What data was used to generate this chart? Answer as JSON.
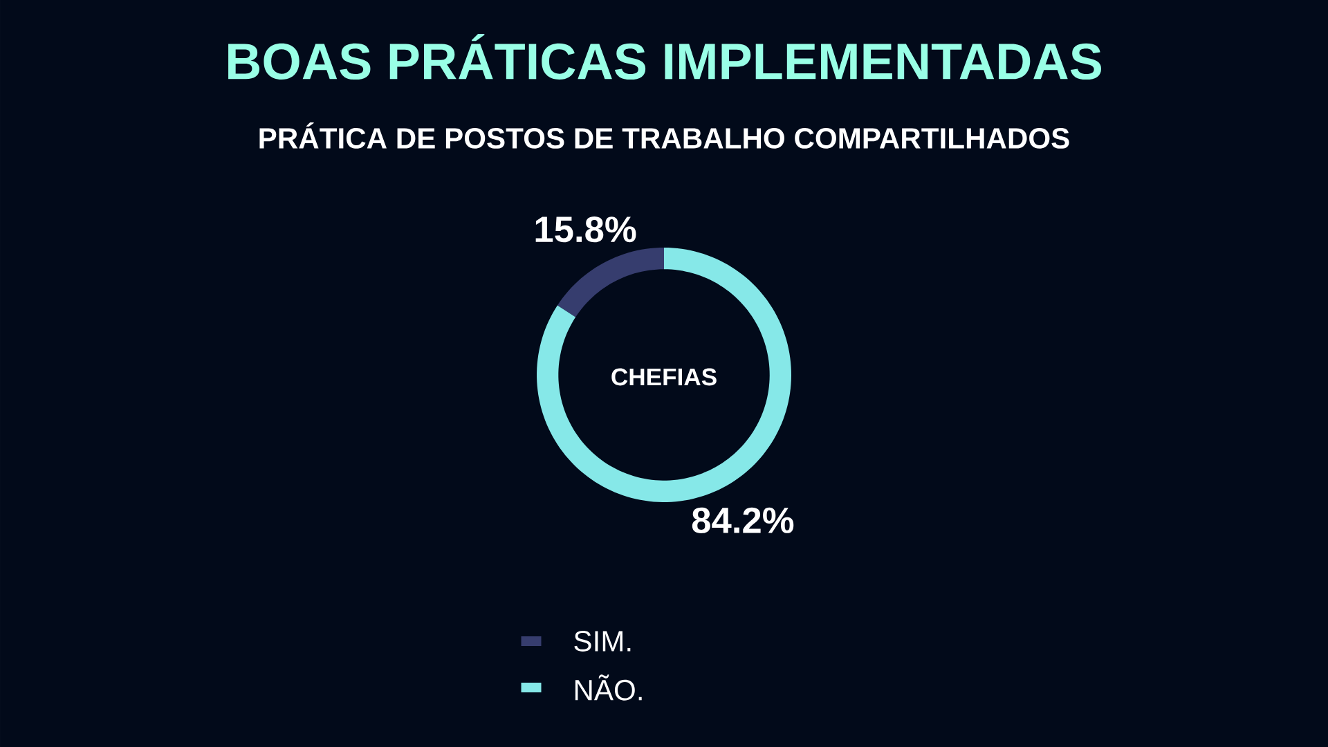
{
  "chart_data": {
    "type": "donut",
    "title": "BOAS PRÁTICAS IMPLEMENTADAS",
    "subtitle": "PRÁTICA DE POSTOS DE TRABALHO COMPARTILHADOS",
    "categories": [
      "SIM.",
      "NÃO."
    ],
    "values": [
      15.8,
      84.2
    ],
    "colors": [
      "#363d6e",
      "#86e8e8"
    ],
    "value_labels": [
      "15.8%",
      "84.2%"
    ],
    "annotations": [
      "CHEFIAS"
    ],
    "legend": "bottom"
  }
}
